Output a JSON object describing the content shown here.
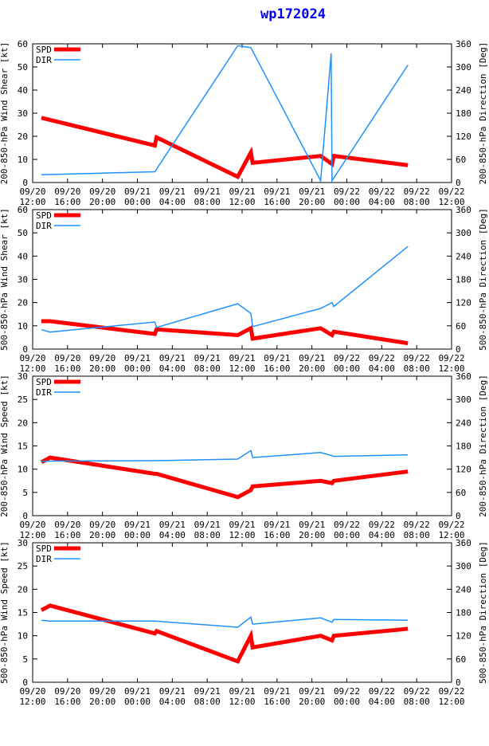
{
  "title": "wp172024",
  "x_tick_labels": [
    [
      "09/20",
      "12:00"
    ],
    [
      "09/20",
      "16:00"
    ],
    [
      "09/20",
      "20:00"
    ],
    [
      "09/21",
      "00:00"
    ],
    [
      "09/21",
      "04:00"
    ],
    [
      "09/21",
      "08:00"
    ],
    [
      "09/21",
      "12:00"
    ],
    [
      "09/21",
      "16:00"
    ],
    [
      "09/21",
      "20:00"
    ],
    [
      "09/22",
      "00:00"
    ],
    [
      "09/22",
      "04:00"
    ],
    [
      "09/22",
      "08:00"
    ],
    [
      "09/22",
      "12:00"
    ]
  ],
  "colors": {
    "spd": "#ff0000",
    "dir": "#1e90ff"
  },
  "chart_data": [
    {
      "type": "line",
      "ylabel_left": "200-850-hPa Wind Shear [kt]",
      "ylabel_right": "200-850-hPa Direction [Deg]",
      "ylim_left": [
        0,
        60
      ],
      "yticks_left": [
        0,
        10,
        20,
        30,
        40,
        50,
        60
      ],
      "ylim_right": [
        0,
        360
      ],
      "yticks_right": [
        0,
        60,
        120,
        180,
        240,
        300,
        360
      ],
      "legend": "top-left",
      "series": [
        {
          "name": "SPD",
          "axis": "left",
          "x": [
            1,
            14,
            14.2,
            23.5,
            25,
            25.2,
            33,
            34.3,
            34.5,
            43
          ],
          "y": [
            28,
            16,
            19.5,
            2.5,
            13,
            8.5,
            11.5,
            8,
            11.5,
            7.5
          ]
        },
        {
          "name": "DIR",
          "axis": "right",
          "x": [
            1,
            14,
            23.5,
            25,
            33,
            34.2,
            34.3,
            43
          ],
          "y": [
            20,
            28,
            355,
            350,
            5,
            335,
            5,
            305
          ]
        }
      ]
    },
    {
      "type": "line",
      "ylabel_left": "500-850-hPa Wind Shear [kt]",
      "ylabel_right": "500-850-hPa Direction [Deg]",
      "ylim_left": [
        0,
        60
      ],
      "yticks_left": [
        0,
        10,
        20,
        30,
        40,
        50,
        60
      ],
      "ylim_right": [
        0,
        360
      ],
      "yticks_right": [
        0,
        60,
        120,
        180,
        240,
        300,
        360
      ],
      "legend": "top-left",
      "series": [
        {
          "name": "SPD",
          "axis": "left",
          "x": [
            1,
            2,
            14,
            14.2,
            23.5,
            25,
            25.2,
            33,
            34.3,
            34.5,
            43
          ],
          "y": [
            12,
            12,
            6.5,
            8.5,
            6,
            9,
            4.5,
            9,
            6,
            7.5,
            2.5
          ]
        },
        {
          "name": "DIR",
          "axis": "right",
          "x": [
            1,
            2,
            14,
            14.2,
            23.5,
            25,
            25.2,
            33,
            34.3,
            34.5,
            43
          ],
          "y": [
            50,
            44,
            70,
            56,
            117,
            92,
            58,
            105,
            120,
            110,
            265
          ]
        }
      ]
    },
    {
      "type": "line",
      "ylabel_left": "200-850-hPa Wind Speed [kt]",
      "ylabel_right": "200-850-hPa Direction [Deg]",
      "ylim_left": [
        0,
        30
      ],
      "yticks_left": [
        0,
        5,
        10,
        15,
        20,
        25,
        30
      ],
      "ylim_right": [
        0,
        360
      ],
      "yticks_right": [
        0,
        60,
        120,
        180,
        240,
        300,
        360
      ],
      "legend": "top-left",
      "series": [
        {
          "name": "SPD",
          "axis": "left",
          "x": [
            1,
            2,
            14,
            14.2,
            23.5,
            25,
            25.2,
            33,
            34.3,
            34.5,
            43
          ],
          "y": [
            11.5,
            12.5,
            9,
            9,
            4,
            5.5,
            6.3,
            7.5,
            7,
            7.5,
            9.5
          ]
        },
        {
          "name": "DIR",
          "axis": "right",
          "x": [
            1,
            2,
            14,
            23.5,
            25,
            25.2,
            33,
            34.3,
            34.5,
            43
          ],
          "y": [
            140,
            141,
            142,
            146,
            168,
            150,
            163,
            155,
            153,
            157
          ]
        }
      ]
    },
    {
      "type": "line",
      "ylabel_left": "500-850-hPa Wind Speed [kt]",
      "ylabel_right": "500-850-hPa Direction [Deg]",
      "ylim_left": [
        0,
        30
      ],
      "yticks_left": [
        0,
        5,
        10,
        15,
        20,
        25,
        30
      ],
      "ylim_right": [
        0,
        360
      ],
      "yticks_right": [
        0,
        60,
        120,
        180,
        240,
        300,
        360
      ],
      "legend": "top-left",
      "series": [
        {
          "name": "SPD",
          "axis": "left",
          "x": [
            1,
            2,
            14,
            14.2,
            23.5,
            25,
            25.2,
            33,
            34.3,
            34.5,
            43
          ],
          "y": [
            15.5,
            16.5,
            10.5,
            11,
            4.5,
            10,
            7.5,
            10,
            9,
            10,
            11.5
          ]
        },
        {
          "name": "DIR",
          "axis": "right",
          "x": [
            1,
            2,
            14,
            23.5,
            25,
            25.2,
            33,
            34.3,
            34.5,
            43
          ],
          "y": [
            160,
            158,
            158,
            142,
            168,
            150,
            166,
            155,
            162,
            160
          ]
        }
      ]
    }
  ]
}
